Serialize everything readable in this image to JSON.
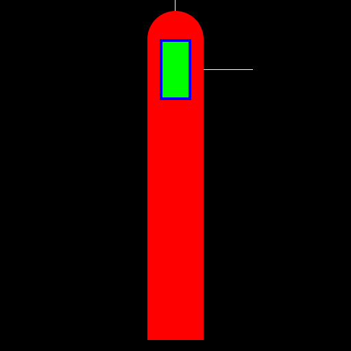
{
  "scene": {
    "background_color": "#000000",
    "pillar_color": "#ff0000",
    "panel_fill_color": "#00ff00",
    "panel_border_color": "#0000ff",
    "line_color": "#ffffff"
  }
}
